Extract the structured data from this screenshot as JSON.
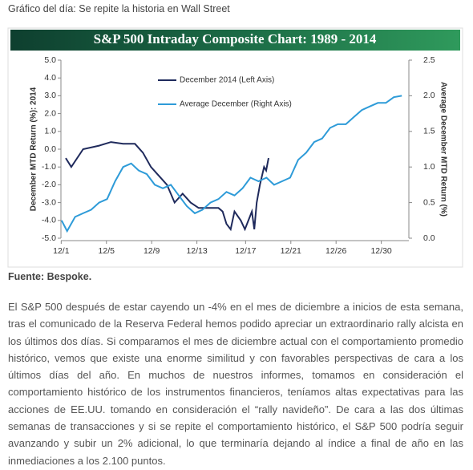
{
  "header": {
    "title": "Gráfico del día: Se repite la historia en Wall Street"
  },
  "chart_data": {
    "type": "line",
    "title": "S&P 500 Intraday Composite Chart: 1989 - 2014",
    "ylabel": "December MTD Return (%): 2014",
    "y2label": "Average December MTD Return (%)",
    "xlim": [
      0,
      100
    ],
    "xticks": [
      {
        "value": 1,
        "label": "12/1"
      },
      {
        "value": 14,
        "label": "12/5"
      },
      {
        "value": 27,
        "label": "12/9"
      },
      {
        "value": 40,
        "label": "12/13"
      },
      {
        "value": 54,
        "label": "12/17"
      },
      {
        "value": 67,
        "label": "12/21"
      },
      {
        "value": 80,
        "label": "12/26"
      },
      {
        "value": 93,
        "label": "12/30"
      }
    ],
    "ylim": [
      -5,
      5
    ],
    "yticks": [
      {
        "value": 5,
        "label": "5.0"
      },
      {
        "value": 4,
        "label": "4.0"
      },
      {
        "value": 3,
        "label": "3.0"
      },
      {
        "value": 2,
        "label": "2.0"
      },
      {
        "value": 1,
        "label": "1.0"
      },
      {
        "value": 0,
        "label": "0.0"
      },
      {
        "value": -1,
        "label": "-1.0"
      },
      {
        "value": -2,
        "label": "-2.0"
      },
      {
        "value": -3,
        "label": "-3.0"
      },
      {
        "value": -4,
        "label": "-4.0"
      },
      {
        "value": -5,
        "label": "-5.0"
      }
    ],
    "y2lim": [
      0,
      2.5
    ],
    "y2ticks": [
      2.5,
      {
        "value": 2,
        "label": "2.0"
      },
      1.5,
      {
        "value": 1,
        "label": "1.0"
      },
      0.5,
      {
        "value": 0,
        "label": "0.0"
      }
    ],
    "legend": "upper-center",
    "series": [
      {
        "name": "December 2014 (Left Axis)",
        "color": "#1f2a5c",
        "x": [
          2.3,
          3.9,
          7.3,
          11.9,
          15.3,
          18.8,
          22.2,
          24.5,
          26.8,
          29.1,
          31.4,
          33.6,
          35.9,
          38.2,
          40.5,
          46.2,
          47.4,
          48.5,
          49.7,
          50.8,
          52.6,
          53.8,
          55.8,
          56.5,
          57.2,
          58.1,
          59.3,
          59.9,
          60.6
        ],
        "values": [
          -0.5,
          -1.0,
          0,
          0.2,
          0.4,
          0.3,
          0.3,
          -0.2,
          -1,
          -1.5,
          -2,
          -3,
          -2.5,
          -3,
          -3.3,
          -3.3,
          -3.5,
          -4.2,
          -4.5,
          -3.5,
          -4,
          -4.5,
          -3.5,
          -4.5,
          -3,
          -2,
          -1,
          -1.2,
          -0.5
        ]
      },
      {
        "name": "Average December (Right Axis)",
        "color": "#2e9bd8",
        "axis": "y2",
        "x": [
          1.1,
          2.7,
          5.0,
          7.3,
          9.6,
          11.9,
          14.2,
          16.5,
          18.8,
          21.1,
          23.3,
          25.6,
          27.9,
          30.2,
          32.5,
          34.8,
          37.1,
          39.4,
          41.6,
          43.9,
          46.2,
          48.5,
          50.8,
          53.1,
          55.4,
          57.7,
          60.0,
          62.2,
          64.5,
          66.8,
          69.1,
          71.4,
          73.7,
          76.0,
          78.3,
          80.5,
          82.8,
          85.1,
          87.4,
          89.7,
          92.0,
          94.3,
          96.6,
          98.9
        ],
        "values": [
          0.25,
          0.1,
          0.3,
          0.35,
          0.4,
          0.5,
          0.55,
          0.8,
          1.0,
          1.05,
          0.95,
          0.9,
          0.75,
          0.7,
          0.75,
          0.6,
          0.45,
          0.35,
          0.4,
          0.5,
          0.55,
          0.65,
          0.6,
          0.7,
          0.85,
          0.8,
          0.85,
          0.75,
          0.8,
          0.85,
          1.1,
          1.2,
          1.35,
          1.4,
          1.55,
          1.6,
          1.6,
          1.7,
          1.8,
          1.85,
          1.9,
          1.9,
          1.98,
          2.0
        ]
      }
    ]
  },
  "source": "Fuente: Bespoke.",
  "body": "El S&P 500 después de estar cayendo un -4% en el mes de diciembre a inicios de esta semana, tras el comunicado de la Reserva Federal hemos podido apreciar un extraordinario rally alcista en los últimos dos días. Si comparamos el mes de diciembre actual con el comportamiento promedio histórico, vemos que existe una enorme similitud y con favorables perspectivas de cara a los últimos días del año. En muchos de nuestros informes, tomamos en consideración el comportamiento histórico de los instrumentos financieros, teníamos altas expectativas para las acciones de EE.UU. tomando en consideración el “rally navideño”. De cara a las dos últimas semanas de transacciones y si se repite el comportamiento histórico, el S&P 500 podría seguir avanzando y subir un 2% adicional, lo que terminaría dejando al índice a final de año en las inmediaciones a los 2.100 puntos."
}
